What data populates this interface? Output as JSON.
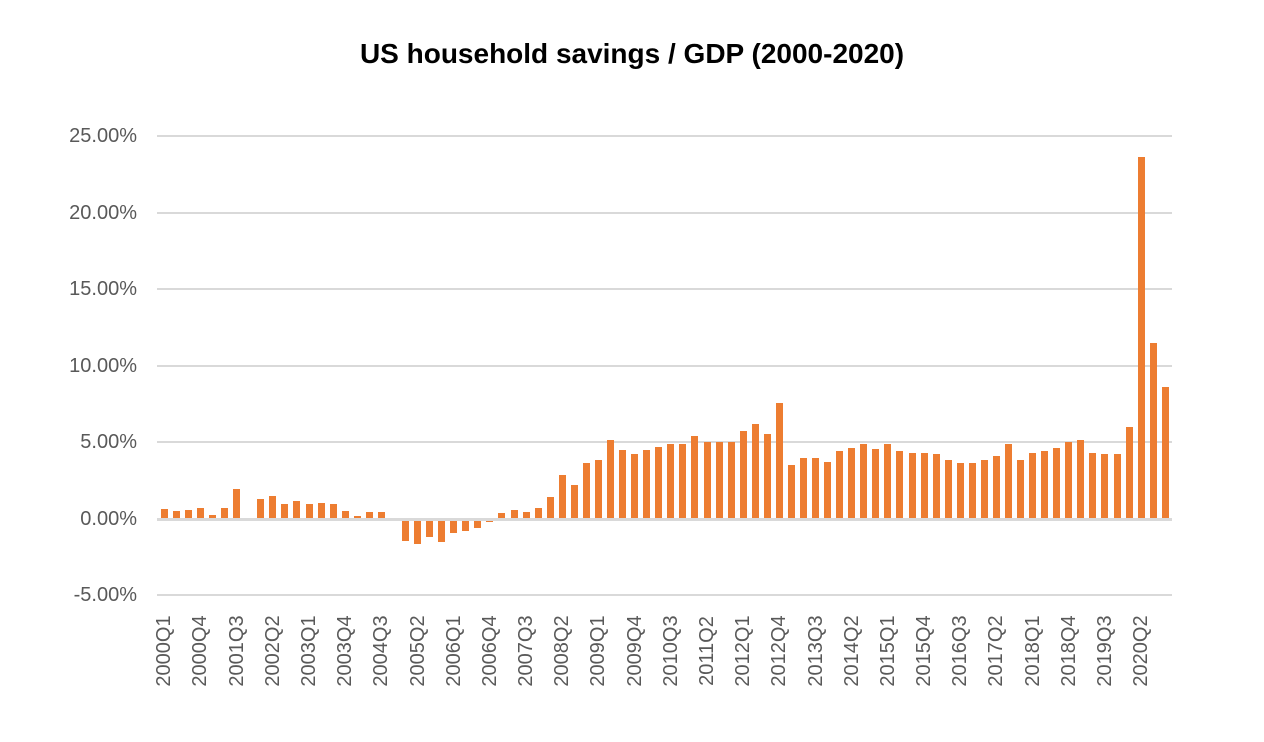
{
  "title": "US household savings / GDP (2000-2020)",
  "colors": {
    "bar": "#ED7D31",
    "gridline": "#D9D9D9",
    "axis_label": "#595959",
    "title": "#000000",
    "background": "#FFFFFF"
  },
  "y_axis": {
    "ticks": [
      {
        "value": 25,
        "label": "25.00%"
      },
      {
        "value": 20,
        "label": "20.00%"
      },
      {
        "value": 15,
        "label": "15.00%"
      },
      {
        "value": 10,
        "label": "10.00%"
      },
      {
        "value": 5,
        "label": "5.00%"
      },
      {
        "value": 0,
        "label": "0.00%"
      },
      {
        "value": -5,
        "label": "-5.00%"
      }
    ],
    "min": -5,
    "max": 25
  },
  "x_axis": {
    "label_every_n": 3,
    "visible_tick_labels": [
      "2000Q1",
      "2000Q4",
      "2001Q3",
      "2002Q2",
      "2003Q1",
      "2003Q4",
      "2004Q3",
      "2005Q2",
      "2006Q1",
      "2006Q4",
      "2007Q3",
      "2008Q2",
      "2009Q1",
      "2009Q4",
      "2010Q3",
      "2011Q2",
      "2012Q1",
      "2012Q4",
      "2013Q3",
      "2014Q2",
      "2015Q1",
      "2015Q4",
      "2016Q3",
      "2017Q2",
      "2018Q1",
      "2018Q4",
      "2019Q3",
      "2020Q2"
    ]
  },
  "chart_data": {
    "type": "bar",
    "title": "US household savings / GDP (2000-2020)",
    "xlabel": "",
    "ylabel": "",
    "ylim": [
      -5,
      25
    ],
    "grid": "horizontal",
    "legend": "none",
    "bar_color": "#ED7D31",
    "value_unit": "percent",
    "categories": [
      "2000Q1",
      "2000Q2",
      "2000Q3",
      "2000Q4",
      "2001Q1",
      "2001Q2",
      "2001Q3",
      "2001Q4",
      "2002Q1",
      "2002Q2",
      "2002Q3",
      "2002Q4",
      "2003Q1",
      "2003Q2",
      "2003Q3",
      "2003Q4",
      "2004Q1",
      "2004Q2",
      "2004Q3",
      "2004Q4",
      "2005Q1",
      "2005Q2",
      "2005Q3",
      "2005Q4",
      "2006Q1",
      "2006Q2",
      "2006Q3",
      "2006Q4",
      "2007Q1",
      "2007Q2",
      "2007Q3",
      "2007Q4",
      "2008Q1",
      "2008Q2",
      "2008Q3",
      "2008Q4",
      "2009Q1",
      "2009Q2",
      "2009Q3",
      "2009Q4",
      "2010Q1",
      "2010Q2",
      "2010Q3",
      "2010Q4",
      "2011Q1",
      "2011Q2",
      "2011Q3",
      "2011Q4",
      "2012Q1",
      "2012Q2",
      "2012Q3",
      "2012Q4",
      "2013Q1",
      "2013Q2",
      "2013Q3",
      "2013Q4",
      "2014Q1",
      "2014Q2",
      "2014Q3",
      "2014Q4",
      "2015Q1",
      "2015Q2",
      "2015Q3",
      "2015Q4",
      "2016Q1",
      "2016Q2",
      "2016Q3",
      "2016Q4",
      "2017Q1",
      "2017Q2",
      "2017Q3",
      "2017Q4",
      "2018Q1",
      "2018Q2",
      "2018Q3",
      "2018Q4",
      "2019Q1",
      "2019Q2",
      "2019Q3",
      "2019Q4",
      "2020Q1",
      "2020Q2",
      "2020Q3",
      "2020Q4"
    ],
    "values": [
      0.6,
      0.5,
      0.55,
      0.7,
      0.25,
      0.7,
      1.95,
      0.05,
      1.25,
      1.5,
      0.95,
      1.15,
      0.95,
      1.0,
      0.95,
      0.5,
      0.15,
      0.4,
      0.4,
      0.05,
      -1.45,
      -1.65,
      -1.2,
      -1.55,
      -0.95,
      -0.8,
      -0.65,
      -0.25,
      0.35,
      0.55,
      0.45,
      0.7,
      1.4,
      2.85,
      2.2,
      3.65,
      3.8,
      5.1,
      4.45,
      4.2,
      4.5,
      4.7,
      4.85,
      4.9,
      5.4,
      5.0,
      5.0,
      5.0,
      5.7,
      6.2,
      5.5,
      7.55,
      3.5,
      3.95,
      3.95,
      3.7,
      4.4,
      4.6,
      4.85,
      4.55,
      4.9,
      4.4,
      4.25,
      4.25,
      4.2,
      3.8,
      3.6,
      3.65,
      3.85,
      4.1,
      4.9,
      3.8,
      4.3,
      4.4,
      4.6,
      5.0,
      5.1,
      4.3,
      4.2,
      4.2,
      6.0,
      23.6,
      11.5,
      8.6
    ]
  }
}
